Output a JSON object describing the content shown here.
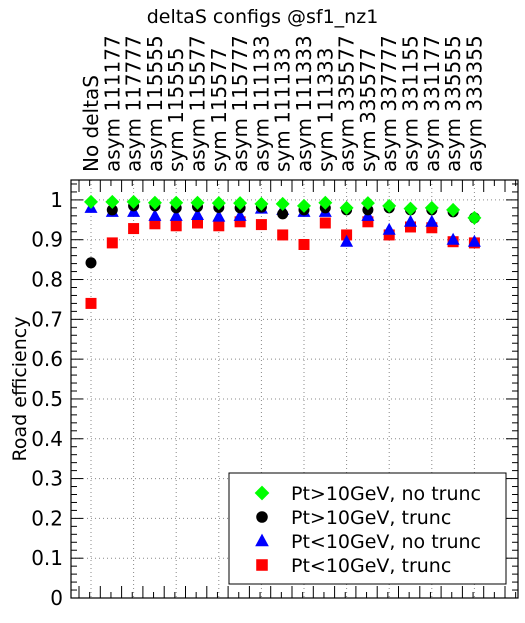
{
  "chart_data": {
    "type": "scatter",
    "title": "deltaS configs @sf1_nz1",
    "xlabel": "",
    "ylabel": "Road efficiency",
    "categories": [
      "No deltaS",
      "asym 111177",
      "asym 117777",
      "asym 115555",
      "sym 115555",
      "asym 115577",
      "sym 115577",
      "asym 115777",
      "asym 111133",
      "sym 111133",
      "asym 111333",
      "sym 111333",
      "asym 335577",
      "sym 335577",
      "asym 337777",
      "asym 331155",
      "asym 331177",
      "asym 335555",
      "asym 333355"
    ],
    "ylim": [
      0,
      1.05
    ],
    "yticks": [
      0,
      0.1,
      0.2,
      0.3,
      0.4,
      0.5,
      0.6,
      0.7,
      0.8,
      0.9,
      1
    ],
    "ytick_labels": [
      "0",
      "0.1",
      "0.2",
      "0.3",
      "0.4",
      "0.5",
      "0.6",
      "0.7",
      "0.8",
      "0.9",
      "1"
    ],
    "grid": true,
    "legend_position": "bottom-right",
    "series": [
      {
        "name": "Pt>10GeV, no trunc",
        "marker": "diamond",
        "color": "#00ff00",
        "values": [
          0.995,
          0.995,
          0.995,
          0.993,
          0.993,
          0.993,
          0.992,
          0.992,
          0.99,
          0.99,
          0.985,
          0.993,
          0.98,
          0.992,
          0.985,
          0.978,
          0.98,
          0.975,
          0.955
        ]
      },
      {
        "name": "Pt>10GeV, trunc",
        "marker": "circle",
        "color": "#000000",
        "values": [
          0.842,
          0.975,
          0.985,
          0.985,
          0.98,
          0.983,
          0.981,
          0.98,
          0.982,
          0.965,
          0.975,
          0.98,
          0.975,
          0.975,
          0.98,
          0.975,
          0.975,
          0.97,
          0.955
        ]
      },
      {
        "name": "Pt<10GeV, no trunc",
        "marker": "triangle",
        "color": "#0000ff",
        "values": [
          0.98,
          0.97,
          0.97,
          0.96,
          0.96,
          0.962,
          0.958,
          0.96,
          0.978,
          0.975,
          0.97,
          0.97,
          0.895,
          0.96,
          0.925,
          0.945,
          0.945,
          0.9,
          0.895
        ]
      },
      {
        "name": "Pt<10GeV, trunc",
        "marker": "square",
        "color": "#ff0000",
        "values": [
          0.74,
          0.892,
          0.928,
          0.94,
          0.935,
          0.942,
          0.935,
          0.945,
          0.938,
          0.912,
          0.888,
          0.942,
          0.912,
          0.945,
          0.912,
          0.932,
          0.93,
          0.895,
          0.892
        ]
      }
    ]
  }
}
